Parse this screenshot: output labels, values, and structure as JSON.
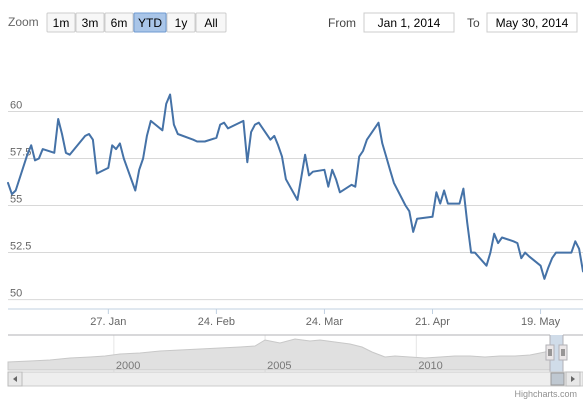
{
  "range_selector": {
    "zoom_label": "Zoom",
    "buttons": [
      {
        "label": "1m",
        "active": false
      },
      {
        "label": "3m",
        "active": false
      },
      {
        "label": "6m",
        "active": false
      },
      {
        "label": "YTD",
        "active": true
      },
      {
        "label": "1y",
        "active": false
      },
      {
        "label": "All",
        "active": false
      }
    ],
    "from_label": "From",
    "from_value": "Jan 1, 2014",
    "to_label": "To",
    "to_value": "May 30, 2014"
  },
  "chart_data": {
    "type": "line",
    "color": "#4572a7",
    "ylim": [
      49.5,
      63
    ],
    "y_ticks": [
      "60",
      "57.5",
      "55",
      "52.5",
      "50"
    ],
    "y_tick_values": [
      60,
      57.5,
      55,
      52.5,
      50
    ],
    "x_ticks": [
      "27. Jan",
      "24. Feb",
      "24. Mar",
      "21. Apr",
      "19. May"
    ],
    "x_tick_dates": [
      "2014-01-27",
      "2014-02-24",
      "2014-03-24",
      "2014-04-21",
      "2014-05-19"
    ],
    "x_range": [
      "2014-01-01",
      "2014-05-30"
    ],
    "series": [
      {
        "x": [
          "2014-01-01",
          "2014-01-02",
          "2014-01-03",
          "2014-01-06",
          "2014-01-07",
          "2014-01-08",
          "2014-01-09",
          "2014-01-10",
          "2014-01-13",
          "2014-01-14",
          "2014-01-15",
          "2014-01-16",
          "2014-01-17",
          "2014-01-21",
          "2014-01-22",
          "2014-01-23",
          "2014-01-24",
          "2014-01-27",
          "2014-01-28",
          "2014-01-29",
          "2014-01-30",
          "2014-01-31",
          "2014-02-03",
          "2014-02-04",
          "2014-02-05",
          "2014-02-06",
          "2014-02-07",
          "2014-02-10",
          "2014-02-11",
          "2014-02-12",
          "2014-02-13",
          "2014-02-14",
          "2014-02-18",
          "2014-02-19",
          "2014-02-20",
          "2014-02-21",
          "2014-02-24",
          "2014-02-25",
          "2014-02-26",
          "2014-02-27",
          "2014-02-28",
          "2014-03-03",
          "2014-03-04",
          "2014-03-05",
          "2014-03-06",
          "2014-03-07",
          "2014-03-10",
          "2014-03-11",
          "2014-03-12",
          "2014-03-13",
          "2014-03-14",
          "2014-03-17",
          "2014-03-18",
          "2014-03-19",
          "2014-03-20",
          "2014-03-21",
          "2014-03-24",
          "2014-03-25",
          "2014-03-26",
          "2014-03-27",
          "2014-03-28",
          "2014-03-31",
          "2014-04-01",
          "2014-04-02",
          "2014-04-03",
          "2014-04-04",
          "2014-04-07",
          "2014-04-08",
          "2014-04-09",
          "2014-04-10",
          "2014-04-11",
          "2014-04-14",
          "2014-04-15",
          "2014-04-16",
          "2014-04-17",
          "2014-04-21",
          "2014-04-22",
          "2014-04-23",
          "2014-04-24",
          "2014-04-25",
          "2014-04-28",
          "2014-04-29",
          "2014-04-30",
          "2014-05-01",
          "2014-05-02",
          "2014-05-05",
          "2014-05-06",
          "2014-05-07",
          "2014-05-08",
          "2014-05-09",
          "2014-05-12",
          "2014-05-13",
          "2014-05-14",
          "2014-05-15",
          "2014-05-16",
          "2014-05-19",
          "2014-05-20",
          "2014-05-21",
          "2014-05-22",
          "2014-05-23",
          "2014-05-27",
          "2014-05-28",
          "2014-05-29",
          "2014-05-30"
        ],
        "y": [
          56.2,
          55.6,
          55.8,
          57.7,
          58.2,
          57.4,
          57.5,
          58.0,
          57.8,
          59.6,
          58.8,
          57.8,
          57.7,
          58.7,
          58.8,
          58.5,
          56.7,
          57.0,
          58.2,
          58.0,
          58.3,
          57.5,
          55.8,
          56.9,
          57.5,
          58.7,
          59.5,
          59.0,
          60.4,
          60.9,
          59.3,
          58.8,
          58.5,
          58.4,
          58.4,
          58.4,
          58.6,
          59.3,
          59.4,
          59.1,
          59.2,
          59.5,
          57.3,
          58.9,
          59.3,
          59.4,
          58.5,
          58.7,
          58.2,
          57.6,
          56.4,
          55.3,
          56.5,
          57.7,
          56.6,
          56.8,
          56.9,
          56.0,
          56.9,
          56.4,
          55.7,
          56.1,
          56.0,
          57.6,
          57.9,
          58.5,
          59.4,
          58.3,
          57.6,
          56.9,
          56.2,
          55.0,
          54.7,
          53.6,
          54.3,
          54.4,
          55.7,
          55.1,
          55.8,
          55.1,
          55.1,
          55.9,
          54.1,
          52.5,
          52.5,
          51.8,
          52.5,
          53.5,
          53.0,
          53.3,
          53.1,
          53.0,
          52.2,
          52.5,
          52.3,
          51.8,
          51.1,
          51.7,
          52.2,
          52.5,
          52.5,
          53.1,
          52.7,
          51.5
        ]
      }
    ]
  },
  "navigator": {
    "ticks": [
      "2000",
      "2005",
      "2010"
    ],
    "tick_years": [
      2000,
      2005,
      2010
    ],
    "year_range": [
      1996.5,
      2014.42
    ]
  },
  "credits": "Highcharts.com"
}
